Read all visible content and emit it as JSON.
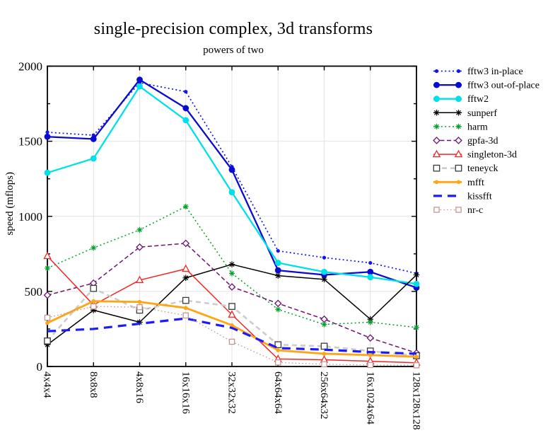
{
  "title": "single-precision complex, 3d transforms",
  "subtitle": "powers of two",
  "y_axis": {
    "label": "speed (mflops)",
    "tick_labels": [
      "0",
      "500",
      "1000",
      "1500",
      "2000"
    ],
    "major_ticks": [
      0,
      500,
      1000,
      1500,
      2000
    ],
    "minor_ticks": [
      250,
      750,
      1250,
      1750
    ]
  },
  "chart_data": {
    "type": "line",
    "title": "single-precision complex, 3d transforms",
    "subtitle": "powers of two",
    "xlabel": "",
    "ylabel": "speed (mflops)",
    "ylim": [
      0,
      2000
    ],
    "grid": true,
    "legend_position": "right-top",
    "categories": [
      "4x4x4",
      "8x8x8",
      "4x8x16",
      "16x16x16",
      "32x32x32",
      "64x64x64",
      "256x64x32",
      "16x1024x64",
      "128x128x128"
    ],
    "series": [
      {
        "name": "fftw3 in-place",
        "color": "#1414f0",
        "marker": "dot",
        "marker_size": 2.6,
        "dash": "2 3.4",
        "lw": 1.7,
        "values": [
          1560,
          1540,
          1890,
          1830,
          1330,
          770,
          725,
          690,
          620
        ]
      },
      {
        "name": "fftw3 out-of-place",
        "color": "#0a0ad0",
        "marker": "circle",
        "marker_size": 4.4,
        "dash": "",
        "lw": 2.3,
        "values": [
          1530,
          1515,
          1910,
          1720,
          1310,
          640,
          610,
          630,
          525
        ]
      },
      {
        "name": "fftw2",
        "color": "#00e0e8",
        "marker": "circle",
        "marker_size": 4.4,
        "dash": "",
        "lw": 2.3,
        "values": [
          1290,
          1385,
          1865,
          1640,
          1160,
          690,
          630,
          595,
          550
        ]
      },
      {
        "name": "sunperf",
        "color": "#000000",
        "marker": "asterisk",
        "marker_size": 4.3,
        "dash": "",
        "lw": 1.5,
        "values": [
          145,
          375,
          295,
          590,
          680,
          605,
          580,
          315,
          610
        ]
      },
      {
        "name": "harm",
        "color": "#00a028",
        "marker": "asterisk",
        "marker_size": 4.0,
        "dash": "2 3.4",
        "lw": 1.5,
        "values": [
          655,
          790,
          910,
          1065,
          620,
          380,
          280,
          295,
          260
        ]
      },
      {
        "name": "gpfa-3d",
        "color": "#6f1270",
        "marker": "diamond-open",
        "marker_size": 4.4,
        "dash": "6 3.5",
        "lw": 1.5,
        "values": [
          475,
          555,
          795,
          820,
          530,
          420,
          315,
          190,
          90
        ]
      },
      {
        "name": "singleton-3d",
        "color": "#f42525",
        "marker": "triangle-open",
        "marker_size": 5.0,
        "dash": "",
        "lw": 1.5,
        "values": [
          735,
          410,
          575,
          650,
          345,
          50,
          45,
          35,
          25
        ]
      },
      {
        "name": "teneyck",
        "color": "#cccccc",
        "marker": "square-open",
        "marker_size": 4.2,
        "marker_color": "#3a3a3a",
        "dash": "7 5",
        "lw": 2.6,
        "values": [
          170,
          520,
          375,
          440,
          400,
          145,
          135,
          103,
          72
        ]
      },
      {
        "name": "mfft",
        "color": "#ffa513",
        "marker": "dot",
        "marker_size": 2.8,
        "dash": "",
        "lw": 2.8,
        "values": [
          290,
          435,
          430,
          390,
          275,
          108,
          85,
          76,
          65
        ]
      },
      {
        "name": "kissfft",
        "color": "#1a1aff",
        "marker": "none",
        "marker_size": 0,
        "dash": "12 8",
        "lw": 3.2,
        "values": [
          235,
          250,
          285,
          320,
          257,
          123,
          112,
          96,
          85
        ]
      },
      {
        "name": "nr-c",
        "color": "#c59595",
        "marker": "square-open",
        "marker_size": 3.6,
        "dash": "1.6 3.2",
        "lw": 1.3,
        "values": [
          325,
          400,
          395,
          340,
          165,
          27,
          15,
          10,
          8
        ]
      }
    ]
  }
}
